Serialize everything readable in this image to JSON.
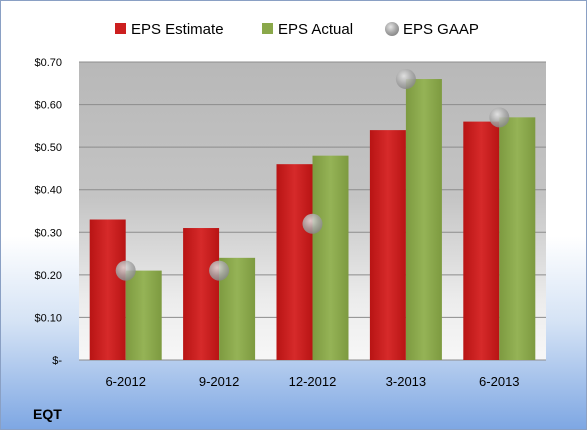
{
  "chart_data": {
    "type": "bar",
    "categories": [
      "6-2012",
      "9-2012",
      "12-2012",
      "3-2013",
      "6-2013"
    ],
    "series": [
      {
        "name": "EPS Estimate",
        "kind": "bar",
        "color": "#cc1f1f",
        "values": [
          0.33,
          0.31,
          0.46,
          0.54,
          0.56
        ]
      },
      {
        "name": "EPS Actual",
        "kind": "bar",
        "color": "#8aa84a",
        "values": [
          0.21,
          0.24,
          0.48,
          0.66,
          0.57
        ]
      },
      {
        "name": "EPS GAAP",
        "kind": "scatter",
        "color": "#a8a8a8",
        "values": [
          0.21,
          0.21,
          0.32,
          0.66,
          0.57
        ]
      }
    ],
    "yticks": [
      "$-",
      "$0.10",
      "$0.20",
      "$0.30",
      "$0.40",
      "$0.50",
      "$0.60",
      "$0.70"
    ],
    "ylim": [
      0,
      0.7
    ],
    "grid": true,
    "legend": "top"
  },
  "ticker": "EQT"
}
